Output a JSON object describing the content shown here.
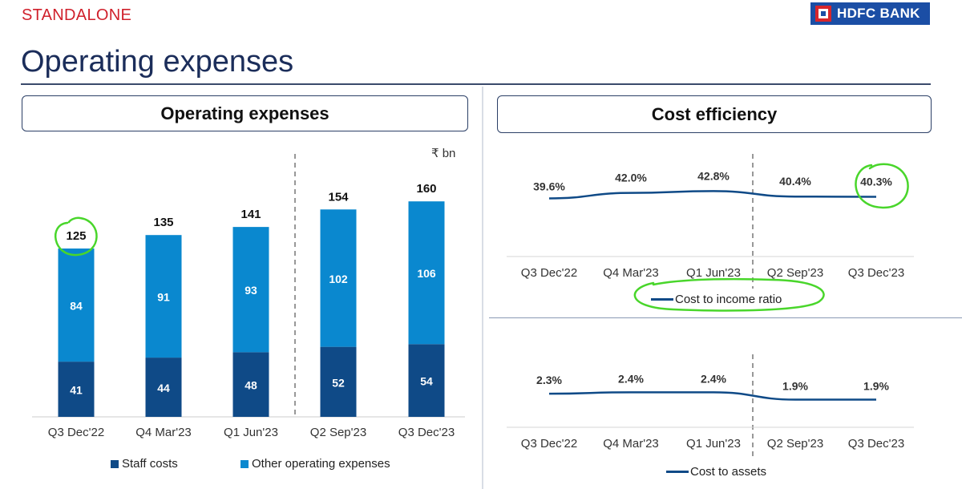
{
  "header": {
    "label": "STANDALONE",
    "title": "Operating expenses",
    "brand": "HDFC BANK"
  },
  "colors": {
    "staff": "#0f4a87",
    "other": "#0a88cf",
    "line": "#0f4a87",
    "highlight": "#49d62b",
    "accent_red": "#d0202b"
  },
  "chart_data": [
    {
      "type": "bar",
      "stacked": true,
      "title": "Operating expenses",
      "unit": "₹ bn",
      "categories": [
        "Q3 Dec'22",
        "Q4 Mar'23",
        "Q1 Jun'23",
        "Q2 Sep'23",
        "Q3 Dec'23"
      ],
      "series": [
        {
          "name": "Staff costs",
          "values": [
            41,
            44,
            48,
            52,
            54
          ]
        },
        {
          "name": "Other operating expenses",
          "values": [
            84,
            91,
            93,
            102,
            106
          ]
        }
      ],
      "totals": [
        125,
        135,
        141,
        154,
        160
      ],
      "legend": "bottom",
      "ylim": [
        0,
        170
      ]
    },
    {
      "type": "line",
      "title": "Cost efficiency",
      "categories": [
        "Q3 Dec'22",
        "Q4 Mar'23",
        "Q1 Jun'23",
        "Q2 Sep'23",
        "Q3 Dec'23"
      ],
      "series": [
        {
          "name": "Cost to income ratio",
          "values": [
            39.6,
            42.0,
            42.8,
            40.4,
            40.3
          ]
        }
      ],
      "labels": [
        "39.6%",
        "42.0%",
        "42.8%",
        "40.4%",
        "40.3%"
      ],
      "ylim": [
        38,
        44
      ],
      "legend": "bottom"
    },
    {
      "type": "line",
      "categories": [
        "Q3 Dec'22",
        "Q4 Mar'23",
        "Q1 Jun'23",
        "Q2 Sep'23",
        "Q3 Dec'23"
      ],
      "series": [
        {
          "name": "Cost to assets",
          "values": [
            2.3,
            2.4,
            2.4,
            1.9,
            1.9
          ]
        }
      ],
      "labels": [
        "2.3%",
        "2.4%",
        "2.4%",
        "1.9%",
        "1.9%"
      ],
      "ylim": [
        1.0,
        3.4
      ],
      "legend": "bottom"
    }
  ]
}
